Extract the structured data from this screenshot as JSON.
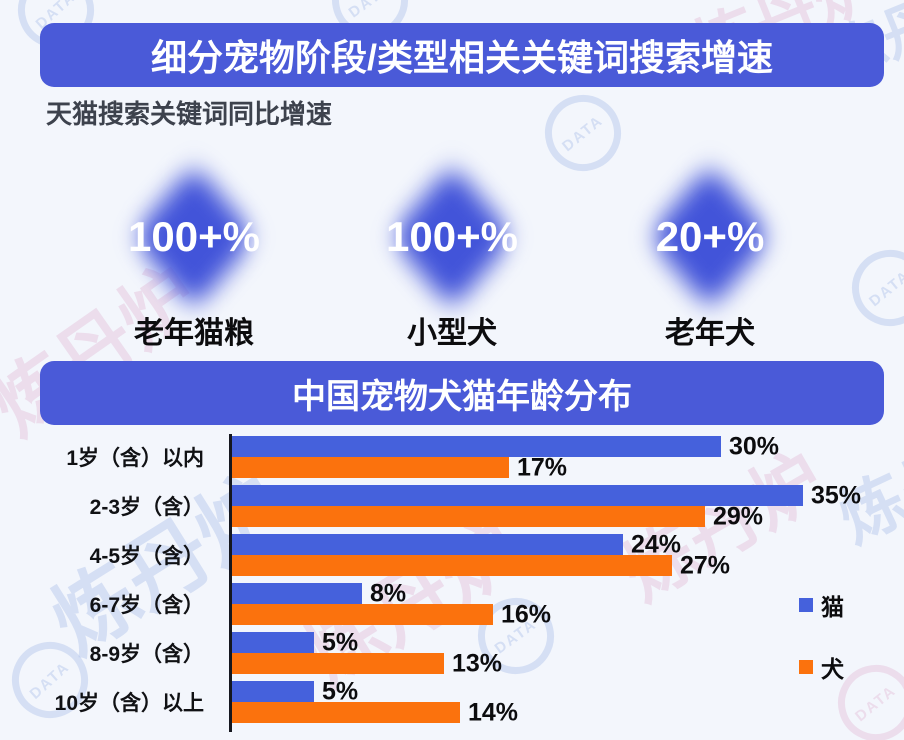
{
  "theme": {
    "background": "#f3f6fc",
    "banner_color": "#4a5ad8",
    "diamond_color": "#4254d9",
    "subtitle_color": "#3d424d"
  },
  "header": {
    "title": "细分宠物阶段/类型相关关键词搜索增速",
    "subtitle": "天猫搜索关键词同比增速"
  },
  "highlights": {
    "items": [
      {
        "value": "100+%",
        "label": "老年猫粮"
      },
      {
        "value": "100+%",
        "label": "小型犬"
      },
      {
        "value": "20+%",
        "label": "老年犬"
      }
    ]
  },
  "chart_data": {
    "type": "bar",
    "orientation": "horizontal",
    "title": "中国宠物犬猫年龄分布",
    "categories": [
      "1岁（含）以内",
      "2-3岁（含）",
      "4-5岁（含）",
      "6-7岁（含）",
      "8-9岁（含）",
      "10岁（含）以上"
    ],
    "series": [
      {
        "name": "猫",
        "color": "#4561dc",
        "values": [
          30,
          35,
          24,
          8,
          5,
          5
        ]
      },
      {
        "name": "犬",
        "color": "#fb720d",
        "values": [
          17,
          29,
          27,
          16,
          13,
          14
        ]
      }
    ],
    "unit": "%",
    "value_labels": true,
    "xlim": [
      0,
      40
    ],
    "legend_position": "right",
    "grid": false,
    "axis_color": "#15171f"
  },
  "watermark": {
    "brand": "炼丹炉",
    "logo_text": "DATA"
  }
}
